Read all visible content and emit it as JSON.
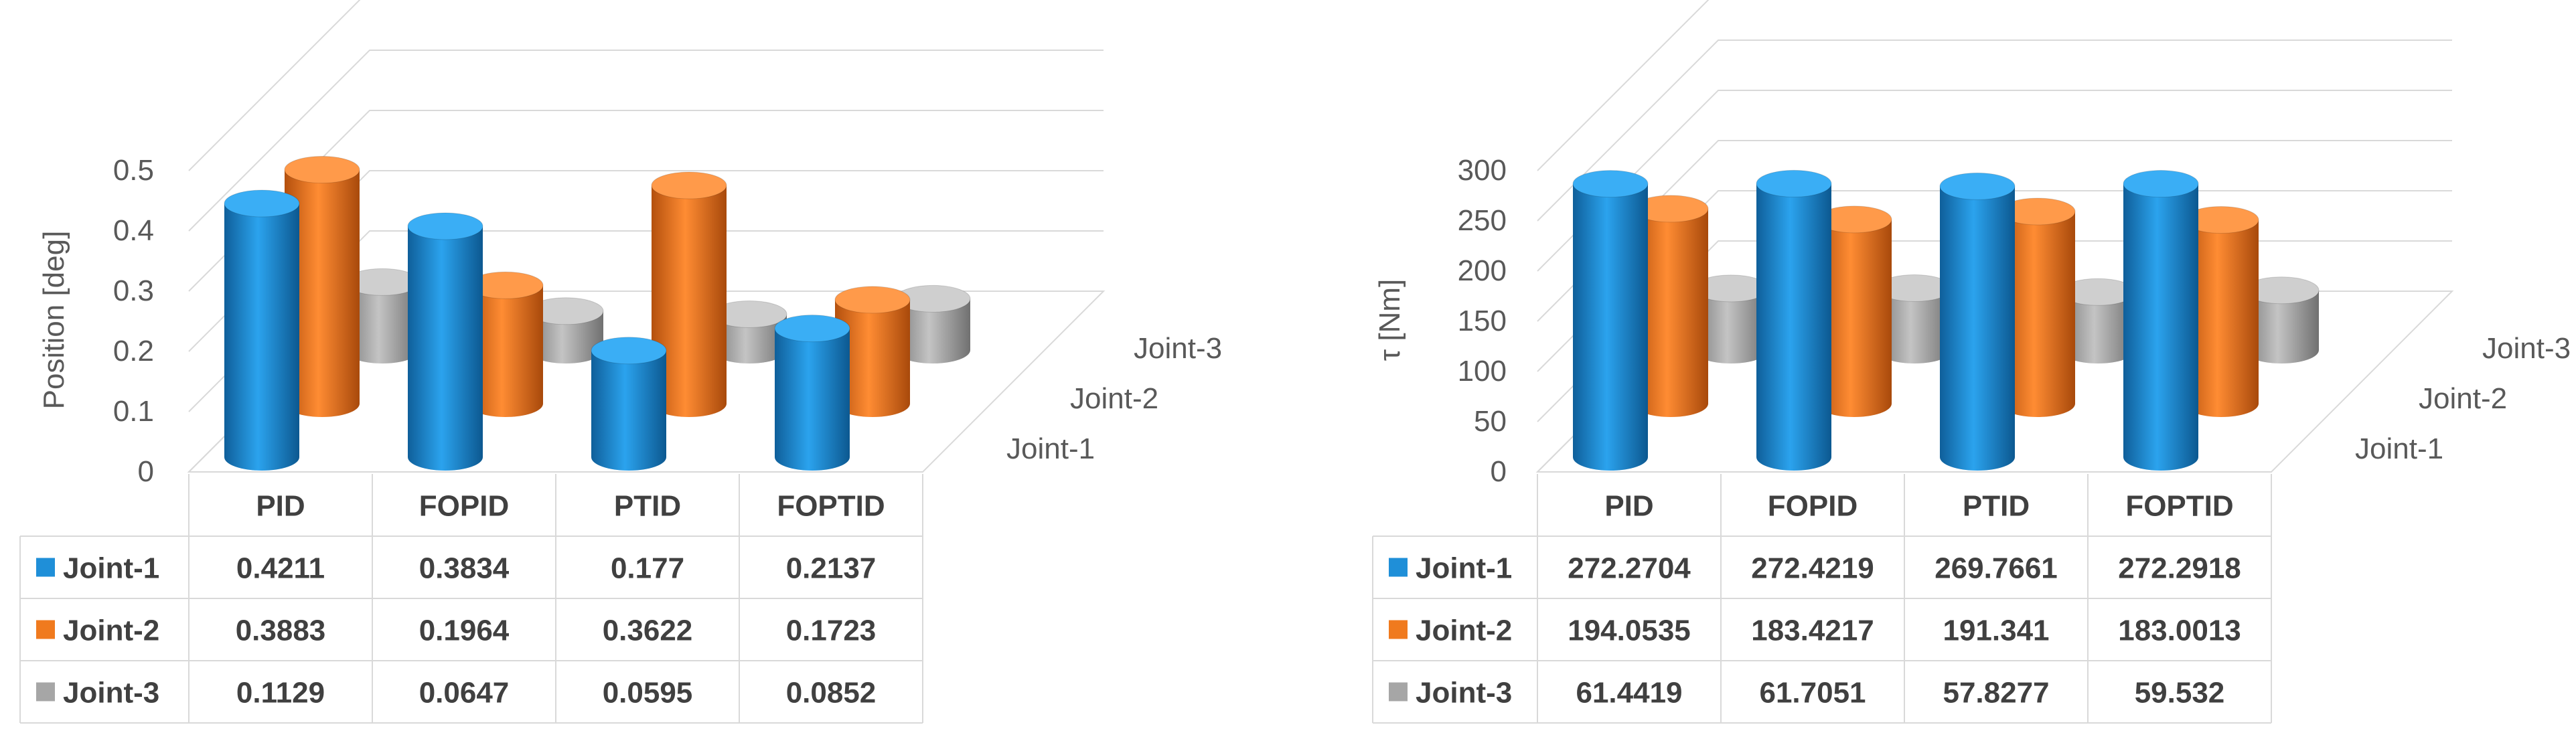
{
  "colors": {
    "joint1": "#1f8fd8",
    "joint2": "#f07a1e",
    "joint3": "#a6a6a6"
  },
  "chart_data": [
    {
      "type": "bar",
      "ylabel": "Position [deg]",
      "ylim": [
        0,
        0.5
      ],
      "yticks": [
        "0",
        "0.1",
        "0.2",
        "0.3",
        "0.4",
        "0.5"
      ],
      "categories": [
        "PID",
        "FOPID",
        "PTID",
        "FOPTID"
      ],
      "depth_labels": [
        "Joint-1",
        "Joint-2",
        "Joint-3"
      ],
      "series": [
        {
          "name": "Joint-1",
          "values": [
            0.4211,
            0.3834,
            0.177,
            0.2137
          ],
          "labels": [
            "0.4211",
            "0.3834",
            "0.177",
            "0.2137"
          ]
        },
        {
          "name": "Joint-2",
          "values": [
            0.3883,
            0.1964,
            0.3622,
            0.1723
          ],
          "labels": [
            "0.3883",
            "0.1964",
            "0.3622",
            "0.1723"
          ]
        },
        {
          "name": "Joint-3",
          "values": [
            0.1129,
            0.0647,
            0.0595,
            0.0852
          ],
          "labels": [
            "0.1129",
            "0.0647",
            "0.0595",
            "0.0852"
          ]
        }
      ]
    },
    {
      "type": "bar",
      "ylabel": "τ [Nm]",
      "ylim": [
        0,
        300
      ],
      "yticks": [
        "0",
        "50",
        "100",
        "150",
        "200",
        "250",
        "300"
      ],
      "categories": [
        "PID",
        "FOPID",
        "PTID",
        "FOPTID"
      ],
      "depth_labels": [
        "Joint-1",
        "Joint-2",
        "Joint-3"
      ],
      "series": [
        {
          "name": "Joint-1",
          "values": [
            272.2704,
            272.4219,
            269.7661,
            272.2918
          ],
          "labels": [
            "272.2704",
            "272.4219",
            "269.7661",
            "272.2918"
          ]
        },
        {
          "name": "Joint-2",
          "values": [
            194.0535,
            183.4217,
            191.341,
            183.0013
          ],
          "labels": [
            "194.0535",
            "183.4217",
            "191.341",
            "183.0013"
          ]
        },
        {
          "name": "Joint-3",
          "values": [
            61.4419,
            61.7051,
            57.8277,
            59.532
          ],
          "labels": [
            "61.4419",
            "61.7051",
            "57.8277",
            "59.532"
          ]
        }
      ]
    }
  ]
}
